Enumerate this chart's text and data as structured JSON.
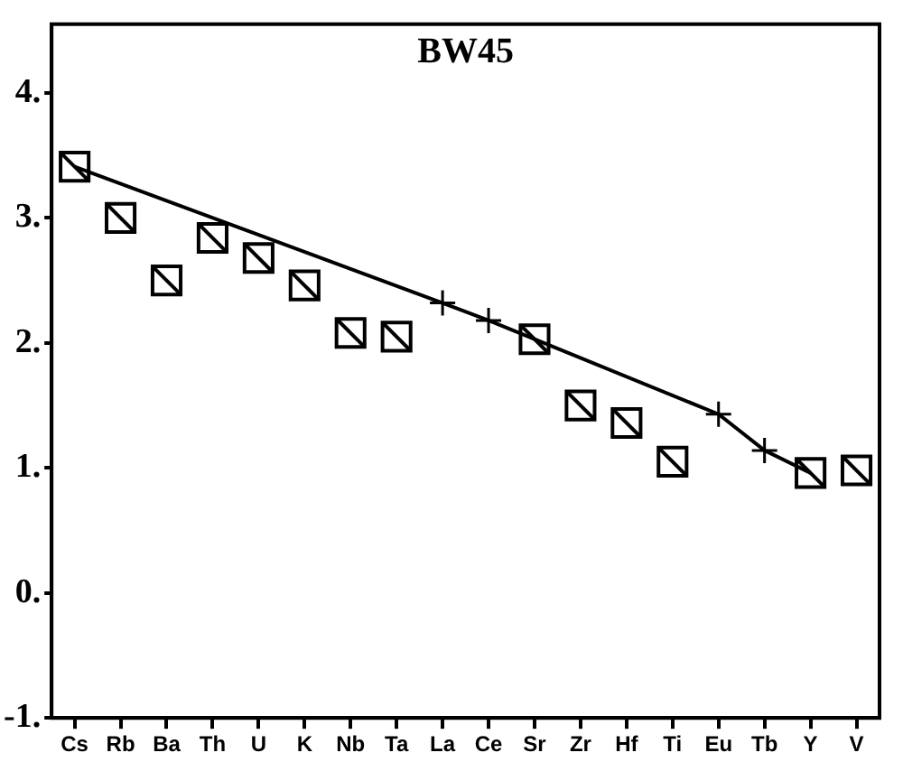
{
  "chart_data": {
    "type": "scatter",
    "title": "BW45",
    "categories": [
      "Cs",
      "Rb",
      "Ba",
      "Th",
      "U",
      "K",
      "Nb",
      "Ta",
      "La",
      "Ce",
      "Sr",
      "Zr",
      "Hf",
      "Ti",
      "Eu",
      "Tb",
      "Y",
      "V"
    ],
    "ylim": [
      -1,
      4.55
    ],
    "yticks": [
      {
        "value": -1,
        "label": "-1."
      },
      {
        "value": 0,
        "label": "0."
      },
      {
        "value": 1,
        "label": "1."
      },
      {
        "value": 2,
        "label": "2."
      },
      {
        "value": 3,
        "label": "3."
      },
      {
        "value": 4,
        "label": "4."
      }
    ],
    "grid": false,
    "series": [
      {
        "marker": "square",
        "color": "#000000",
        "values": [
          3.41,
          3.0,
          2.5,
          2.84,
          2.68,
          2.46,
          2.08,
          2.05,
          null,
          null,
          2.03,
          1.5,
          1.36,
          1.05,
          null,
          null,
          0.96,
          0.98
        ]
      },
      {
        "type": "line",
        "marker": "cross",
        "line_style": "solid",
        "color": "#000000",
        "values": [
          3.41,
          null,
          null,
          null,
          null,
          null,
          null,
          null,
          2.32,
          2.18,
          null,
          null,
          null,
          null,
          1.43,
          1.14,
          0.96,
          null
        ]
      }
    ]
  }
}
